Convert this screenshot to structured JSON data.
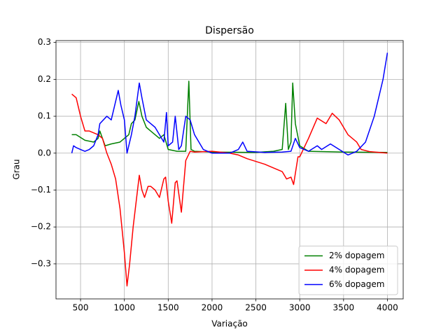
{
  "chart_data": {
    "type": "line",
    "title": "Dispersão",
    "xlabel": "Variação",
    "ylabel": "Grau",
    "xlim": [
      220,
      4180
    ],
    "ylim": [
      -0.395,
      0.305
    ],
    "xticks": [
      500,
      1000,
      1500,
      2000,
      2500,
      3000,
      3500,
      4000
    ],
    "yticks": [
      {
        "value": -0.3,
        "label": "−0.3"
      },
      {
        "value": -0.2,
        "label": "−0.2"
      },
      {
        "value": -0.1,
        "label": "−0.1"
      },
      {
        "value": 0,
        "label": "0.0"
      },
      0.1,
      0.2,
      0.3
    ],
    "grid": true,
    "legend": "lower right",
    "series": [
      {
        "name": "2% dopagem",
        "color": "#008000",
        "x": [
          400,
          450,
          550,
          650,
          700,
          720,
          780,
          850,
          950,
          1000,
          1050,
          1080,
          1120,
          1165,
          1200,
          1250,
          1300,
          1350,
          1400,
          1450,
          1500,
          1600,
          1700,
          1735,
          1760,
          1800,
          2000,
          2500,
          2700,
          2800,
          2840,
          2870,
          2900,
          2920,
          2950,
          3000,
          3100,
          3500,
          4000
        ],
        "values": [
          0.05,
          0.05,
          0.035,
          0.03,
          0.04,
          0.06,
          0.02,
          0.025,
          0.03,
          0.04,
          0.05,
          0.08,
          0.09,
          0.14,
          0.1,
          0.07,
          0.06,
          0.05,
          0.04,
          0.05,
          0.01,
          0.005,
          0.005,
          0.195,
          0.01,
          0.005,
          0.003,
          0.002,
          0.005,
          0.01,
          0.135,
          0.01,
          0.03,
          0.19,
          0.08,
          0.02,
          0.005,
          0.003,
          0.002
        ]
      },
      {
        "name": "4% dopagem",
        "color": "#ff0000",
        "x": [
          400,
          450,
          500,
          550,
          600,
          700,
          750,
          800,
          850,
          900,
          950,
          1000,
          1030,
          1060,
          1100,
          1150,
          1170,
          1200,
          1230,
          1270,
          1300,
          1350,
          1400,
          1450,
          1470,
          1500,
          1540,
          1580,
          1600,
          1650,
          1700,
          1750,
          1800,
          2000,
          2200,
          2300,
          2400,
          2600,
          2800,
          2850,
          2900,
          2930,
          2980,
          3000,
          3100,
          3200,
          3300,
          3370,
          3450,
          3550,
          3650,
          3700,
          3800,
          4000
        ],
        "values": [
          0.16,
          0.15,
          0.1,
          0.06,
          0.06,
          0.05,
          0.04,
          0.0,
          -0.03,
          -0.07,
          -0.15,
          -0.27,
          -0.36,
          -0.3,
          -0.2,
          -0.1,
          -0.06,
          -0.1,
          -0.12,
          -0.09,
          -0.09,
          -0.1,
          -0.12,
          -0.07,
          -0.065,
          -0.13,
          -0.19,
          -0.08,
          -0.075,
          -0.16,
          -0.02,
          0.005,
          0.003,
          0.005,
          0.0,
          -0.005,
          -0.015,
          -0.03,
          -0.05,
          -0.07,
          -0.065,
          -0.085,
          -0.01,
          -0.01,
          0.04,
          0.095,
          0.08,
          0.108,
          0.09,
          0.05,
          0.03,
          0.01,
          0.004,
          0.0
        ]
      },
      {
        "name": "6% dopagem",
        "color": "#0000ff",
        "x": [
          400,
          420,
          450,
          500,
          550,
          600,
          650,
          700,
          720,
          800,
          850,
          900,
          930,
          960,
          1000,
          1030,
          1080,
          1120,
          1170,
          1200,
          1250,
          1300,
          1350,
          1400,
          1450,
          1480,
          1500,
          1550,
          1580,
          1620,
          1650,
          1700,
          1750,
          1800,
          1900,
          2000,
          2200,
          2300,
          2350,
          2400,
          2600,
          2800,
          2900,
          2950,
          3000,
          3100,
          3200,
          3250,
          3350,
          3450,
          3550,
          3650,
          3750,
          3850,
          3950,
          4000
        ],
        "values": [
          0.0,
          0.02,
          0.015,
          0.01,
          0.005,
          0.01,
          0.02,
          0.05,
          0.08,
          0.1,
          0.09,
          0.14,
          0.17,
          0.13,
          0.09,
          0.0,
          0.05,
          0.1,
          0.19,
          0.15,
          0.09,
          0.08,
          0.07,
          0.05,
          0.03,
          0.11,
          0.02,
          0.03,
          0.1,
          0.01,
          0.02,
          0.1,
          0.09,
          0.05,
          0.01,
          0.0,
          0.0,
          0.01,
          0.03,
          0.005,
          0.002,
          0.003,
          0.005,
          0.04,
          0.015,
          0.005,
          0.02,
          0.01,
          0.025,
          0.01,
          -0.005,
          0.005,
          0.03,
          0.1,
          0.2,
          0.272
        ]
      }
    ]
  }
}
